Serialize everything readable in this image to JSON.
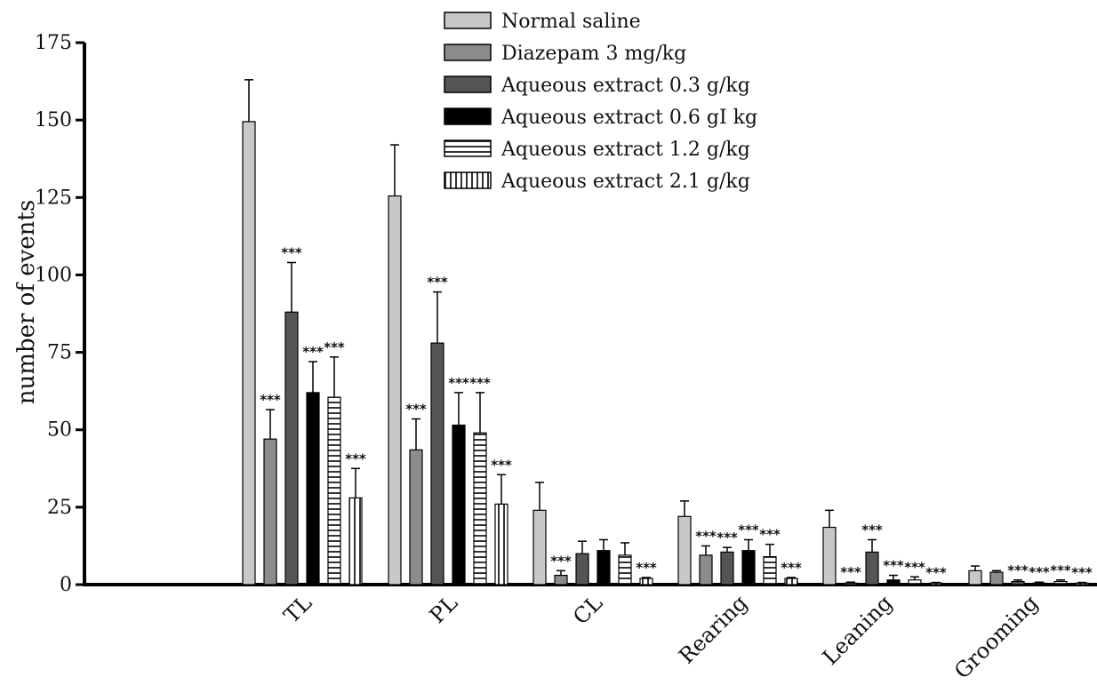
{
  "chart_data": {
    "type": "bar",
    "title": "",
    "xlabel": "",
    "ylabel": "number of events",
    "ylim": [
      0,
      175
    ],
    "yticks": [
      0,
      25,
      50,
      75,
      100,
      125,
      150,
      175
    ],
    "categories": [
      "TL",
      "PL",
      "CL",
      "Rearing",
      "Leaning",
      "Grooming"
    ],
    "legend_position": "top-center",
    "significance_marker": "***",
    "series": [
      {
        "name": "Normal saline",
        "pattern": "solid",
        "color": "#c8c8c8",
        "values": [
          149.5,
          125.5,
          24,
          22,
          18.5,
          4.5
        ],
        "errors": [
          13.5,
          16.5,
          9,
          5,
          5.5,
          1.5
        ],
        "significant": [
          false,
          false,
          false,
          false,
          false,
          false
        ]
      },
      {
        "name": "Diazepam 3 mg/kg",
        "pattern": "solid",
        "color": "#8c8c8c",
        "values": [
          47,
          43.5,
          3,
          9.5,
          0.5,
          4
        ],
        "errors": [
          9.5,
          10,
          1.5,
          3,
          0.3,
          0.5
        ],
        "significant": [
          true,
          true,
          true,
          true,
          true,
          false
        ]
      },
      {
        "name": "Aqueous extract 0.3 g/kg",
        "pattern": "solid",
        "color": "#555555",
        "values": [
          88,
          78,
          10,
          10.5,
          10.5,
          1
        ],
        "errors": [
          16,
          16.5,
          4,
          1.5,
          4,
          0.5
        ],
        "significant": [
          true,
          true,
          false,
          true,
          true,
          true
        ]
      },
      {
        "name": "Aqueous extract 0.6 gI kg",
        "pattern": "solid",
        "color": "#000000",
        "values": [
          62,
          51.5,
          11,
          11,
          1.5,
          0.5
        ],
        "errors": [
          10,
          10.5,
          3.5,
          3.5,
          1.5,
          0.3
        ],
        "significant": [
          true,
          true,
          false,
          true,
          true,
          true
        ]
      },
      {
        "name": "Aqueous extract 1.2 g/kg",
        "pattern": "horizontal",
        "color": "#000000",
        "values": [
          60.5,
          49,
          9.5,
          9,
          1.5,
          1
        ],
        "errors": [
          13,
          13,
          4,
          4,
          1,
          0.5
        ],
        "significant": [
          true,
          true,
          false,
          true,
          true,
          true
        ]
      },
      {
        "name": "Aqueous extract 2.1 g/kg",
        "pattern": "vertical",
        "color": "#000000",
        "values": [
          28,
          26,
          2,
          2,
          0.5,
          0.5
        ],
        "errors": [
          9.5,
          9.5,
          0.3,
          0.3,
          0.2,
          0.2
        ],
        "significant": [
          true,
          true,
          true,
          true,
          true,
          true
        ]
      }
    ]
  }
}
